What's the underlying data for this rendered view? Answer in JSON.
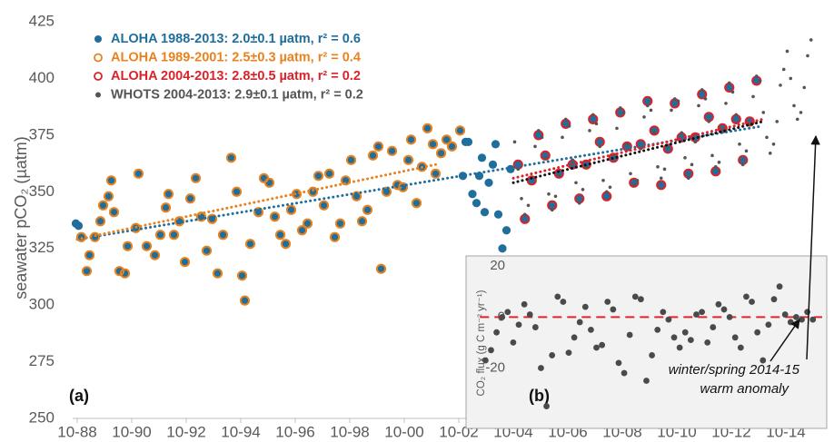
{
  "chart_data": [
    {
      "type": "scatter",
      "y_label": "seawater pCO₂ (µatm)",
      "panel_label": "(a)",
      "annotation": [
        "winter/spring 2014-15",
        "warm anomaly"
      ],
      "legend": "upper left",
      "xlim": [
        1988.6,
        2016.2
      ],
      "ylim": [
        250,
        425
      ],
      "yticks": [
        250,
        275,
        300,
        325,
        350,
        375,
        400,
        425
      ],
      "xticks": [
        {
          "value": 1988.75,
          "label": "10-88"
        },
        {
          "value": 1990.75,
          "label": "10-90"
        },
        {
          "value": 1992.75,
          "label": "10-92"
        },
        {
          "value": 1994.75,
          "label": "10-94"
        },
        {
          "value": 1996.75,
          "label": "10-96"
        },
        {
          "value": 1998.75,
          "label": "10-98"
        },
        {
          "value": 2000.75,
          "label": "10-00"
        },
        {
          "value": 2002.75,
          "label": "10-02"
        },
        {
          "value": 2004.75,
          "label": "10-04"
        },
        {
          "value": 2006.75,
          "label": "10-06"
        },
        {
          "value": 2008.75,
          "label": "10-08"
        },
        {
          "value": 2010.75,
          "label": "10-10"
        },
        {
          "value": 2012.75,
          "label": "10-12"
        },
        {
          "value": 2014.75,
          "label": "10-14"
        }
      ],
      "series": [
        {
          "name": "ALOHA 1988-2013: 2.0±0.1 µatm, r² = 0.6",
          "color": "#1f6e9c",
          "marker": "filled",
          "trend": {
            "x": [
              1988.75,
              2013.9
            ],
            "y": [
              329,
              379
            ]
          },
          "x": [
            1988.7,
            1988.8,
            1988.9,
            1989.1,
            1989.2,
            1989.4,
            1989.6,
            1989.7,
            1989.9,
            1990.0,
            1990.1,
            1990.3,
            1990.5,
            1990.6,
            1990.9,
            1991.0,
            1991.3,
            1991.6,
            1991.8,
            1992.0,
            1992.1,
            1992.3,
            1992.5,
            1992.7,
            1992.9,
            1993.1,
            1993.3,
            1993.5,
            1993.7,
            1993.9,
            1994.1,
            1994.4,
            1994.6,
            1994.8,
            1994.9,
            1995.1,
            1995.4,
            1995.6,
            1995.8,
            1996.0,
            1996.2,
            1996.4,
            1996.6,
            1996.8,
            1997.0,
            1997.2,
            1997.4,
            1997.6,
            1997.8,
            1998.0,
            1998.2,
            1998.4,
            1998.6,
            1998.8,
            1999.0,
            1999.2,
            1999.4,
            1999.6,
            1999.8,
            1999.9,
            2000.1,
            2000.3,
            2000.5,
            2000.7,
            2000.9,
            2001.0,
            2001.2,
            2001.4,
            2001.6,
            2001.8,
            2001.9,
            2002.1,
            2002.3,
            2002.5,
            2002.8,
            2002.9,
            2003.0,
            2003.1,
            2003.25,
            2003.4,
            2003.5,
            2003.6,
            2003.7,
            2003.85,
            2004.0,
            2004.1,
            2004.2,
            2004.35,
            2004.5,
            2004.65,
            2004.925,
            2005.175,
            2005.425,
            2005.675,
            2005.925,
            2006.175,
            2006.425,
            2006.675,
            2006.925,
            2007.175,
            2007.425,
            2007.675,
            2007.925,
            2008.175,
            2008.425,
            2008.675,
            2008.925,
            2009.175,
            2009.425,
            2009.675,
            2009.925,
            2010.175,
            2010.425,
            2010.675,
            2010.925,
            2011.175,
            2011.425,
            2011.675,
            2011.925,
            2012.175,
            2012.425,
            2012.675,
            2012.925,
            2013.175,
            2013.425,
            2013.675
          ],
          "values": [
            336,
            335,
            330,
            315,
            322,
            330,
            337,
            344,
            348,
            355,
            341,
            315,
            314,
            326,
            334,
            358,
            326,
            322,
            331,
            343,
            349,
            331,
            337,
            319,
            347,
            356,
            339,
            324,
            338,
            314,
            331,
            365,
            350,
            313,
            302,
            327,
            341,
            356,
            354,
            339,
            331,
            327,
            342,
            349,
            333,
            336,
            350,
            357,
            344,
            358,
            330,
            336,
            355,
            364,
            348,
            337,
            342,
            366,
            370,
            316,
            350,
            368,
            353,
            352,
            364,
            373,
            345,
            361,
            378,
            371,
            358,
            367,
            373,
            370,
            377,
            357,
            372,
            372,
            349,
            345,
            357,
            365,
            341,
            354,
            362,
            371,
            340,
            325,
            333,
            360,
            362,
            338,
            355,
            375,
            366,
            344,
            358,
            380,
            362,
            347,
            362,
            382,
            372,
            348,
            365,
            385,
            370,
            354,
            371,
            390,
            377,
            353,
            369,
            389,
            374,
            358,
            374,
            393,
            383,
            359,
            378,
            396,
            382,
            364,
            381,
            399
          ]
        },
        {
          "name": "ALOHA 1989-2001: 2.5±0.3 µatm, r² = 0.4",
          "color": "#e8821e",
          "marker": "open",
          "trend": {
            "x": [
              1988.75,
              2001.9
            ],
            "y": [
              329,
              362
            ]
          },
          "x": [
            1988.9,
            1989.1,
            1989.2,
            1989.4,
            1989.6,
            1989.7,
            1989.9,
            1990.0,
            1990.1,
            1990.3,
            1990.5,
            1990.6,
            1990.9,
            1991.0,
            1991.3,
            1991.6,
            1991.8,
            1992.0,
            1992.1,
            1992.3,
            1992.5,
            1992.7,
            1992.9,
            1993.1,
            1993.3,
            1993.5,
            1993.7,
            1993.9,
            1994.1,
            1994.4,
            1994.6,
            1994.8,
            1994.9,
            1995.1,
            1995.4,
            1995.6,
            1995.8,
            1996.0,
            1996.2,
            1996.4,
            1996.6,
            1996.8,
            1997.0,
            1997.2,
            1997.4,
            1997.6,
            1997.8,
            1998.0,
            1998.2,
            1998.4,
            1998.6,
            1998.8,
            1999.0,
            1999.2,
            1999.4,
            1999.6,
            1999.8,
            1999.9,
            2000.1,
            2000.3,
            2000.5,
            2000.7,
            2000.9,
            2001.0,
            2001.2,
            2001.4,
            2001.6,
            2001.8,
            2001.9,
            2002.1,
            2002.3,
            2002.5,
            2002.8
          ],
          "values": [
            330,
            315,
            322,
            330,
            337,
            344,
            348,
            355,
            341,
            315,
            314,
            326,
            334,
            358,
            326,
            322,
            331,
            343,
            349,
            331,
            337,
            319,
            347,
            356,
            339,
            324,
            338,
            314,
            331,
            365,
            350,
            313,
            302,
            327,
            341,
            356,
            354,
            339,
            331,
            327,
            342,
            349,
            333,
            336,
            350,
            357,
            344,
            358,
            330,
            336,
            355,
            364,
            348,
            337,
            342,
            366,
            370,
            316,
            350,
            368,
            353,
            352,
            364,
            373,
            345,
            361,
            378,
            371,
            358,
            367,
            373,
            370,
            377
          ]
        },
        {
          "name": "ALOHA 2004-2013: 2.8±0.5 µatm, r² = 0.2",
          "color": "#d9232a",
          "marker": "open",
          "trend": {
            "x": [
              2004.75,
              2013.9
            ],
            "y": [
              356,
              382
            ]
          },
          "x": [
            2004.925,
            2005.175,
            2005.425,
            2005.675,
            2005.925,
            2006.175,
            2006.425,
            2006.675,
            2006.925,
            2007.175,
            2007.425,
            2007.675,
            2007.925,
            2008.175,
            2008.425,
            2008.675,
            2008.925,
            2009.175,
            2009.425,
            2009.675,
            2009.925,
            2010.175,
            2010.425,
            2010.675,
            2010.925,
            2011.175,
            2011.425,
            2011.675,
            2011.925,
            2012.175,
            2012.425,
            2012.675,
            2012.925,
            2013.175,
            2013.425,
            2013.675
          ],
          "values": [
            362,
            338,
            355,
            375,
            366,
            344,
            358,
            380,
            362,
            347,
            362,
            382,
            372,
            348,
            365,
            385,
            370,
            354,
            371,
            390,
            377,
            353,
            369,
            389,
            374,
            358,
            374,
            393,
            383,
            359,
            378,
            396,
            382,
            364,
            381,
            399
          ]
        },
        {
          "name": "WHOTS 2004-2013: 2.9±0.1 µatm, r² = 0.2",
          "color": "#555555",
          "marker": "dot",
          "trend": {
            "x": [
              2004.75,
              2013.9
            ],
            "y": [
              354,
              381
            ]
          },
          "x": [
            2004.8,
            2004.925,
            2005.05,
            2005.175,
            2005.3,
            2005.425,
            2005.55,
            2005.675,
            2005.8,
            2005.925,
            2006.05,
            2006.175,
            2006.3,
            2006.425,
            2006.55,
            2006.675,
            2006.8,
            2006.925,
            2007.05,
            2007.175,
            2007.3,
            2007.425,
            2007.55,
            2007.675,
            2007.8,
            2007.925,
            2008.05,
            2008.175,
            2008.3,
            2008.425,
            2008.55,
            2008.675,
            2008.8,
            2008.925,
            2009.05,
            2009.175,
            2009.3,
            2009.425,
            2009.55,
            2009.675,
            2009.8,
            2009.925,
            2010.05,
            2010.175,
            2010.3,
            2010.425,
            2010.55,
            2010.675,
            2010.8,
            2010.925,
            2011.05,
            2011.175,
            2011.3,
            2011.425,
            2011.55,
            2011.675,
            2011.8,
            2011.925,
            2012.05,
            2012.175,
            2012.3,
            2012.425,
            2012.55,
            2012.675,
            2012.8,
            2012.925,
            2013.05,
            2013.175,
            2013.3,
            2013.425,
            2013.55,
            2013.675,
            2013.8,
            2013.925,
            2014.05,
            2014.175,
            2014.3,
            2014.425,
            2014.55,
            2014.675,
            2014.8,
            2014.925,
            2015.05,
            2015.175,
            2015.3,
            2015.425,
            2015.55,
            2015.675
          ],
          "values": [
            372,
            360,
            347,
            340,
            344,
            356,
            370,
            377,
            374,
            365,
            349,
            342,
            348,
            357,
            374,
            382,
            379,
            364,
            354,
            345,
            351,
            361,
            377,
            384,
            380,
            370,
            355,
            350,
            352,
            366,
            378,
            387,
            385,
            371,
            358,
            353,
            355,
            369,
            383,
            388,
            386,
            376,
            361,
            356,
            360,
            370,
            386,
            391,
            390,
            376,
            365,
            356,
            362,
            372,
            388,
            395,
            391,
            381,
            366,
            361,
            363,
            377,
            389,
            398,
            394,
            384,
            371,
            362,
            368,
            380,
            392,
            401,
            399,
            385,
            374,
            367,
            371,
            381,
            397,
            404,
            412,
            400,
            388,
            382,
            385,
            396,
            410,
            417
          ]
        }
      ]
    },
    {
      "type": "scatter",
      "y_label": "CO₂ flux (g C m⁻² yr⁻¹)",
      "panel_label": "(b)",
      "xlim": [
        2003.0,
        2016.0
      ],
      "ylim": [
        -43,
        24
      ],
      "yticks": [
        -20,
        0,
        20
      ],
      "hline": 0,
      "hline_color": "#e0262b",
      "series": [
        {
          "color": "#4a4a4a",
          "marker": "filled",
          "x": [
            2003.7,
            2003.9,
            2004.1,
            2004.3,
            2004.5,
            2004.7,
            2004.9,
            2005.1,
            2005.3,
            2005.5,
            2005.7,
            2005.9,
            2006.1,
            2006.3,
            2006.5,
            2006.7,
            2006.9,
            2007.1,
            2007.3,
            2007.5,
            2007.7,
            2007.9,
            2008.1,
            2008.3,
            2008.5,
            2008.7,
            2008.9,
            2009.1,
            2009.3,
            2009.5,
            2009.7,
            2009.9,
            2010.1,
            2010.3,
            2010.5,
            2010.7,
            2010.9,
            2011.1,
            2011.3,
            2011.5,
            2011.7,
            2011.9,
            2012.1,
            2012.3,
            2012.5,
            2012.7,
            2012.9,
            2013.1,
            2013.3,
            2013.5,
            2013.7,
            2013.9,
            2014.1,
            2014.3,
            2014.5,
            2014.7,
            2014.9,
            2015.1,
            2015.3,
            2015.5
          ],
          "values": [
            -17,
            -13,
            -6,
            0,
            2,
            -10,
            -3,
            5,
            1,
            -4,
            -20,
            -35,
            -15,
            8,
            6,
            -14,
            -8,
            -2,
            4,
            -5,
            -12,
            -11,
            6,
            3,
            -18,
            -22,
            -7,
            8,
            7,
            -25,
            -15,
            -5,
            2,
            -1,
            -8,
            -12,
            -6,
            -9,
            1,
            2,
            -10,
            -4,
            5,
            3,
            0,
            -8,
            -12,
            8,
            6,
            -6,
            -17,
            -3,
            7,
            12,
            1,
            -2,
            0,
            -1,
            2,
            -1
          ]
        }
      ]
    }
  ]
}
